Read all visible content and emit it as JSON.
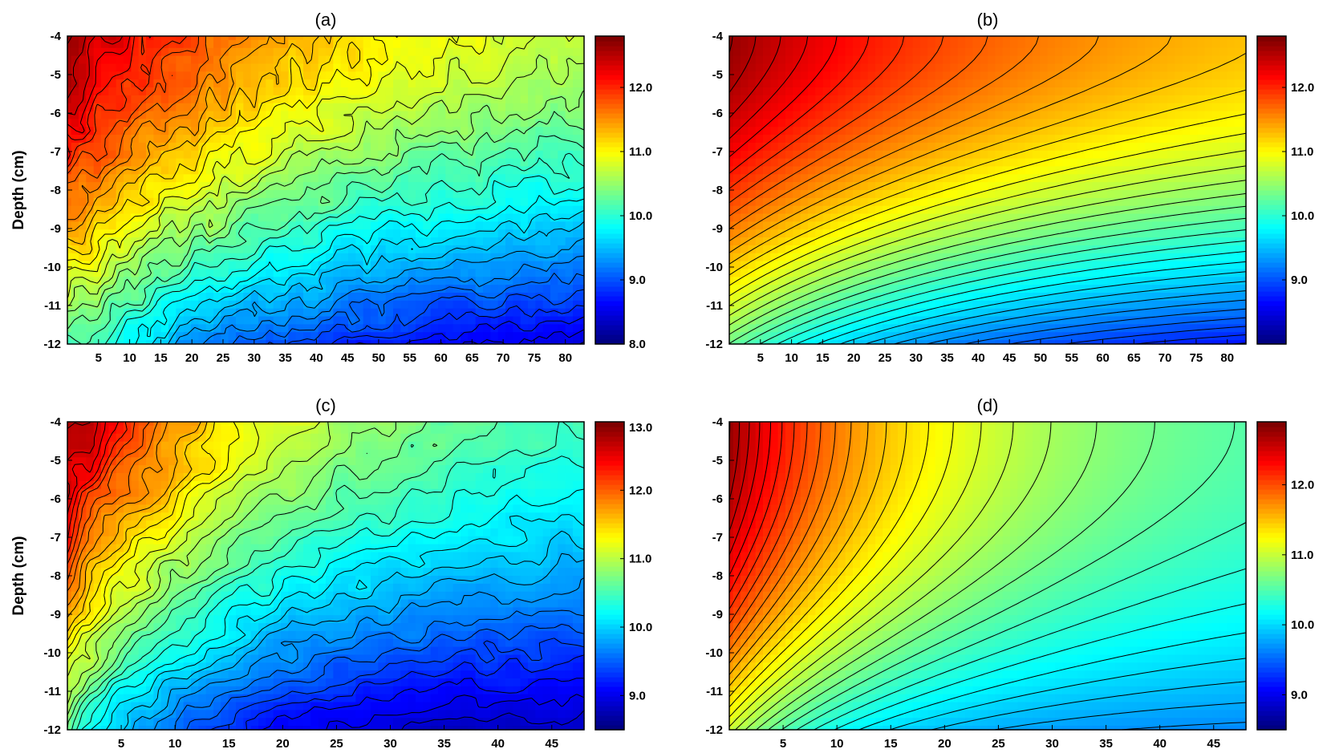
{
  "chart_data": [
    {
      "type": "heatmap",
      "title": "(a)",
      "ylabel": "Depth (cm)",
      "xlabel": "",
      "xlim": [
        0,
        83
      ],
      "ylim": [
        -12,
        -4
      ],
      "x_ticks": [
        5,
        10,
        15,
        20,
        25,
        30,
        35,
        40,
        45,
        50,
        55,
        60,
        65,
        70,
        75,
        80
      ],
      "y_ticks": [
        -4,
        -5,
        -6,
        -7,
        -8,
        -9,
        -10,
        -11,
        -12
      ],
      "colorbar": {
        "min": 8.0,
        "max": 12.8,
        "ticks": [
          8.0,
          9.0,
          10.0,
          11.0,
          12.0
        ],
        "tick_labels": [
          "8.0",
          "9.0",
          "10.0",
          "11.0",
          "12.0"
        ]
      },
      "field": {
        "style": "measured",
        "surface_value": 12.7,
        "far_value": 10.3,
        "deep_value": 8.3,
        "x_decay": 45,
        "depth_decay": 1.6,
        "noise": 0.35
      },
      "contour_levels": 34,
      "grid": false
    },
    {
      "type": "heatmap",
      "title": "(b)",
      "ylabel": "",
      "xlabel": "",
      "xlim": [
        0,
        83
      ],
      "ylim": [
        -12,
        -4
      ],
      "x_ticks": [
        5,
        10,
        15,
        20,
        25,
        30,
        35,
        40,
        45,
        50,
        55,
        60,
        65,
        70,
        75,
        80
      ],
      "y_ticks": [
        -4,
        -5,
        -6,
        -7,
        -8,
        -9,
        -10,
        -11,
        -12
      ],
      "colorbar": {
        "min": 8.0,
        "max": 12.8,
        "ticks": [
          9.0,
          10.0,
          11.0,
          12.0
        ],
        "tick_labels": [
          "9.0",
          "10.0",
          "11.0",
          "12.0"
        ]
      },
      "field": {
        "style": "model",
        "surface_value": 12.7,
        "far_value": 10.9,
        "deep_value": 8.4,
        "x_decay": 55,
        "depth_decay": 1.3,
        "noise": 0
      },
      "contour_levels": 40,
      "grid": false
    },
    {
      "type": "heatmap",
      "title": "(c)",
      "ylabel": "Depth (cm)",
      "xlabel": "",
      "xlim": [
        0,
        48
      ],
      "ylim": [
        -12,
        -4
      ],
      "x_ticks": [
        5,
        10,
        15,
        20,
        25,
        30,
        35,
        40,
        45
      ],
      "y_ticks": [
        -4,
        -5,
        -6,
        -7,
        -8,
        -9,
        -10,
        -11,
        -12
      ],
      "colorbar": {
        "min": 8.5,
        "max": 13.0,
        "ticks": [
          9.0,
          10.0,
          11.0,
          12.0,
          13.0
        ],
        "tick_labels": [
          "9.0",
          "10.0",
          "11.0",
          "12.0",
          "13.0"
        ]
      },
      "field": {
        "style": "measured",
        "surface_value": 12.9,
        "far_value": 10.3,
        "deep_value": 8.7,
        "x_decay": 18,
        "depth_decay": 1.7,
        "noise": 0.3
      },
      "contour_levels": 36,
      "grid": false
    },
    {
      "type": "heatmap",
      "title": "(d)",
      "ylabel": "",
      "xlabel": "",
      "xlim": [
        0,
        48
      ],
      "ylim": [
        -12,
        -4
      ],
      "x_ticks": [
        5,
        10,
        15,
        20,
        25,
        30,
        35,
        40,
        45
      ],
      "y_ticks": [
        -4,
        -5,
        -6,
        -7,
        -8,
        -9,
        -10,
        -11,
        -12
      ],
      "colorbar": {
        "min": 8.5,
        "max": 12.9,
        "ticks": [
          9.0,
          10.0,
          11.0,
          12.0
        ],
        "tick_labels": [
          "9.0",
          "10.0",
          "11.0",
          "12.0"
        ]
      },
      "field": {
        "style": "model",
        "surface_value": 12.8,
        "far_value": 10.3,
        "deep_value": 9.6,
        "x_decay": 20,
        "depth_decay": 1.1,
        "noise": 0
      },
      "contour_levels": 40,
      "grid": false
    }
  ]
}
